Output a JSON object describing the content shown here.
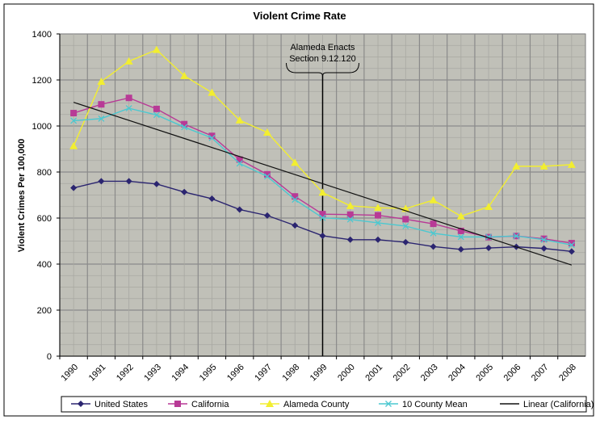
{
  "chart_data": {
    "type": "line",
    "title": "Violent Crime Rate",
    "xlabel": "",
    "ylabel": "Violent Crimes Per 100,000",
    "ylim": [
      0,
      1400
    ],
    "yticks": [
      0,
      200,
      400,
      600,
      800,
      1000,
      1200,
      1400
    ],
    "grid": true,
    "legend_position": "bottom",
    "categories": [
      "1990",
      "1991",
      "1992",
      "1993",
      "1994",
      "1995",
      "1996",
      "1997",
      "1998",
      "1999",
      "2000",
      "2001",
      "2002",
      "2003",
      "2004",
      "2005",
      "2006",
      "2007",
      "2008"
    ],
    "series": [
      {
        "name": "United States",
        "color": "#2b2570",
        "marker": "diamond",
        "values": [
          731,
          760,
          760,
          748,
          713,
          684,
          637,
          611,
          568,
          523,
          506,
          506,
          495,
          476,
          464,
          470,
          475,
          468,
          455
        ]
      },
      {
        "name": "California",
        "color": "#b83a96",
        "marker": "square",
        "values": [
          1056,
          1094,
          1122,
          1074,
          1008,
          957,
          854,
          790,
          694,
          617,
          615,
          612,
          595,
          575,
          544,
          517,
          522,
          510,
          491
        ]
      },
      {
        "name": "Alameda County",
        "color": "#f2ee30",
        "marker": "triangle",
        "values": [
          913,
          1193,
          1281,
          1331,
          1218,
          1145,
          1025,
          972,
          841,
          711,
          653,
          645,
          641,
          678,
          608,
          649,
          825,
          825,
          832
        ]
      },
      {
        "name": "10 County Mean",
        "color": "#4cc8d0",
        "marker": "x",
        "values": [
          1023,
          1032,
          1077,
          1048,
          995,
          948,
          837,
          781,
          680,
          601,
          594,
          579,
          565,
          534,
          518,
          518,
          522,
          506,
          483
        ]
      },
      {
        "name": "Linear (California)",
        "color": "#111111",
        "marker": "none",
        "values": [
          1103,
          null,
          null,
          null,
          null,
          null,
          null,
          null,
          null,
          null,
          null,
          null,
          null,
          null,
          null,
          null,
          null,
          null,
          396
        ]
      }
    ],
    "annotation": {
      "text_line1": "Alameda Enacts",
      "text_line2": "Section 9.12.120",
      "at": "1999"
    }
  }
}
